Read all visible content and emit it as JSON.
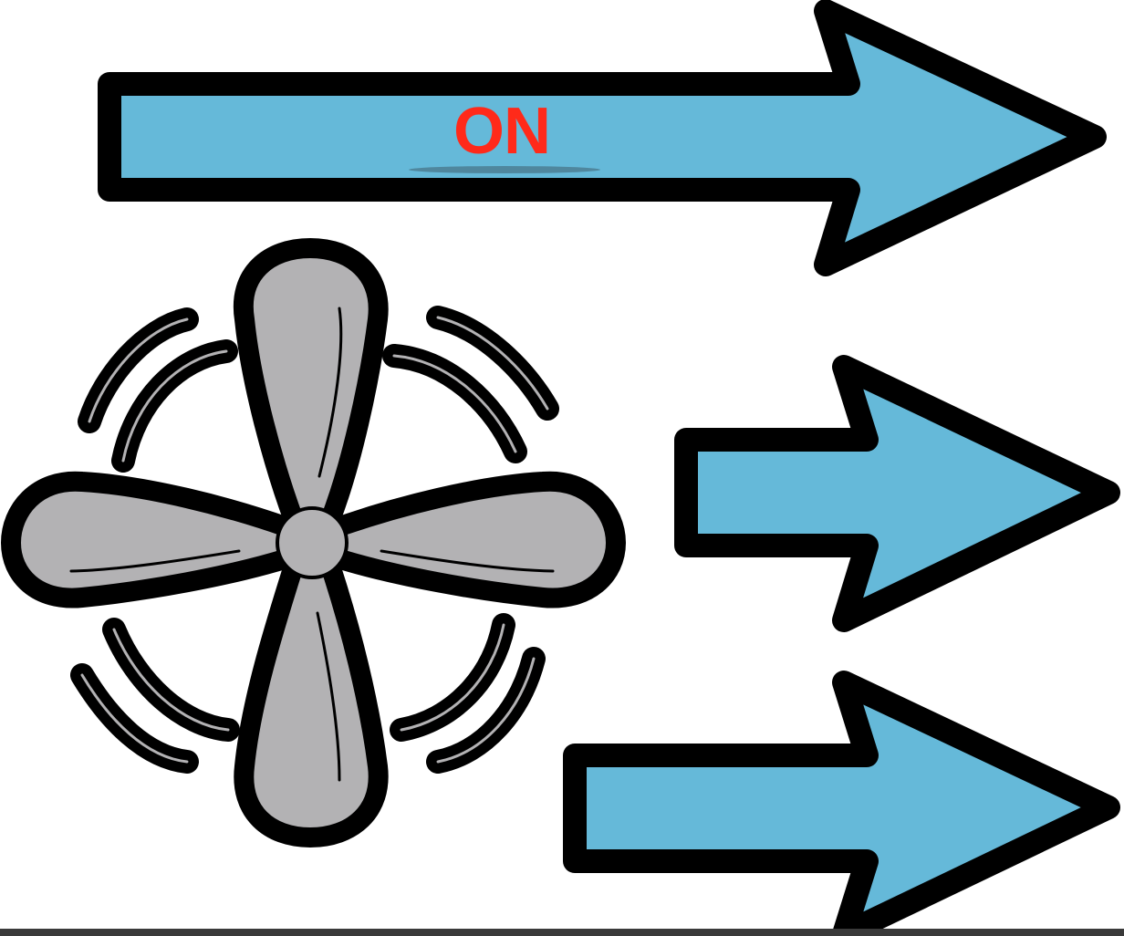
{
  "status_label": "ON",
  "colors": {
    "arrow_fill": "#65b9d9",
    "outline": "#000000",
    "fan_fill": "#b3b2b4",
    "status_text": "#ff2a1a",
    "background": "#ffffff"
  },
  "icons": [
    "fan-icon",
    "airflow-arrow-icon"
  ]
}
